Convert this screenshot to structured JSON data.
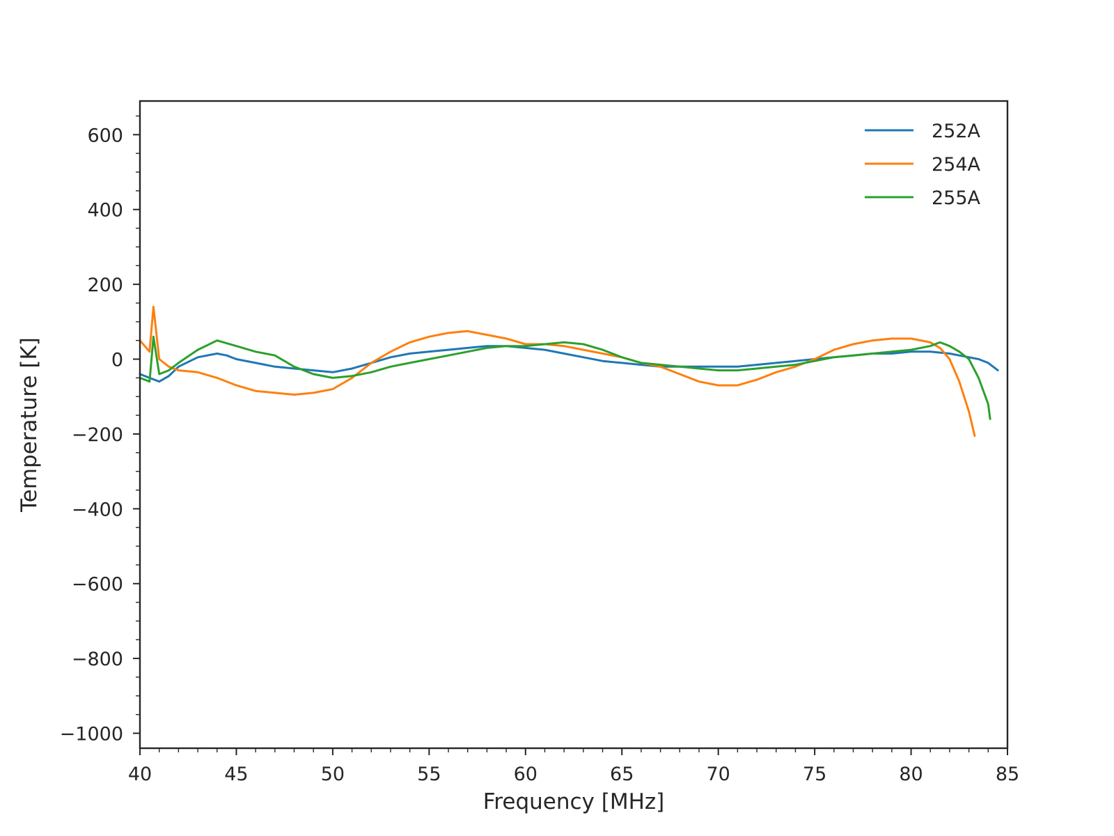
{
  "chart_data": {
    "type": "line",
    "title": "",
    "xlabel": "Frequency [MHz]",
    "ylabel": "Temperature [K]",
    "xlim": [
      40,
      85
    ],
    "ylim": [
      -1040,
      690
    ],
    "x_major_ticks": [
      40,
      45,
      50,
      55,
      60,
      65,
      70,
      75,
      80,
      85
    ],
    "x_tick_labels": [
      "40",
      "45",
      "50",
      "55",
      "60",
      "65",
      "70",
      "75",
      "80",
      "85"
    ],
    "y_major_ticks": [
      -1000,
      -800,
      -600,
      -400,
      -200,
      0,
      200,
      400,
      600
    ],
    "y_tick_labels": [
      "−1000",
      "−800",
      "−600",
      "−400",
      "−200",
      "0",
      "200",
      "400",
      "600"
    ],
    "grid": false,
    "legend_position": "top-right",
    "series": [
      {
        "name": "252A",
        "color": "#1f77b4",
        "x": [
          40,
          40.5,
          41,
          41.5,
          42,
          43,
          44,
          44.5,
          45,
          46,
          47,
          48,
          49,
          50,
          51,
          52,
          53,
          54,
          55,
          56,
          57,
          58,
          59,
          60,
          61,
          62,
          63,
          64,
          65,
          66,
          67,
          68,
          69,
          70,
          71,
          72,
          73,
          74,
          75,
          76,
          77,
          78,
          79,
          80,
          81,
          82,
          82.5,
          83,
          83.5,
          84,
          84.5
        ],
        "y": [
          -40,
          -50,
          -60,
          -45,
          -20,
          5,
          15,
          10,
          0,
          -10,
          -20,
          -25,
          -30,
          -35,
          -25,
          -10,
          5,
          15,
          20,
          25,
          30,
          35,
          35,
          30,
          25,
          15,
          5,
          -5,
          -10,
          -15,
          -20,
          -20,
          -20,
          -20,
          -20,
          -15,
          -10,
          -5,
          0,
          5,
          10,
          15,
          15,
          20,
          20,
          15,
          10,
          5,
          0,
          -10,
          -30
        ]
      },
      {
        "name": "254A",
        "color": "#ff7f0e",
        "x": [
          40,
          40.5,
          40.7,
          41,
          41.5,
          42,
          43,
          44,
          45,
          46,
          47,
          48,
          49,
          50,
          51,
          52,
          53,
          54,
          55,
          56,
          57,
          58,
          59,
          60,
          61,
          62,
          63,
          64,
          65,
          66,
          67,
          68,
          69,
          70,
          71,
          72,
          73,
          74,
          75,
          76,
          77,
          78,
          79,
          80,
          81,
          81.5,
          82,
          82.5,
          83,
          83.3
        ],
        "y": [
          50,
          20,
          140,
          0,
          -20,
          -30,
          -35,
          -50,
          -70,
          -85,
          -90,
          -95,
          -90,
          -80,
          -50,
          -10,
          20,
          45,
          60,
          70,
          75,
          65,
          55,
          40,
          40,
          35,
          25,
          15,
          5,
          -10,
          -20,
          -40,
          -60,
          -70,
          -70,
          -55,
          -35,
          -20,
          0,
          25,
          40,
          50,
          55,
          55,
          45,
          30,
          0,
          -60,
          -140,
          -205
        ]
      },
      {
        "name": "255A",
        "color": "#2ca02c",
        "x": [
          40,
          40.5,
          40.7,
          41,
          41.5,
          42,
          43,
          44,
          45,
          46,
          47,
          48,
          49,
          50,
          51,
          52,
          53,
          54,
          55,
          56,
          57,
          58,
          59,
          60,
          61,
          62,
          63,
          64,
          65,
          66,
          67,
          68,
          69,
          70,
          71,
          72,
          73,
          74,
          75,
          76,
          77,
          78,
          79,
          80,
          81,
          81.5,
          82,
          82.5,
          83,
          83.5,
          84,
          84.1
        ],
        "y": [
          -50,
          -60,
          60,
          -40,
          -30,
          -10,
          25,
          50,
          35,
          20,
          10,
          -20,
          -40,
          -50,
          -45,
          -35,
          -20,
          -10,
          0,
          10,
          20,
          30,
          35,
          35,
          40,
          45,
          40,
          25,
          5,
          -10,
          -15,
          -20,
          -25,
          -30,
          -30,
          -25,
          -20,
          -15,
          -5,
          5,
          10,
          15,
          20,
          25,
          35,
          45,
          35,
          20,
          0,
          -50,
          -120,
          -160
        ]
      }
    ]
  }
}
